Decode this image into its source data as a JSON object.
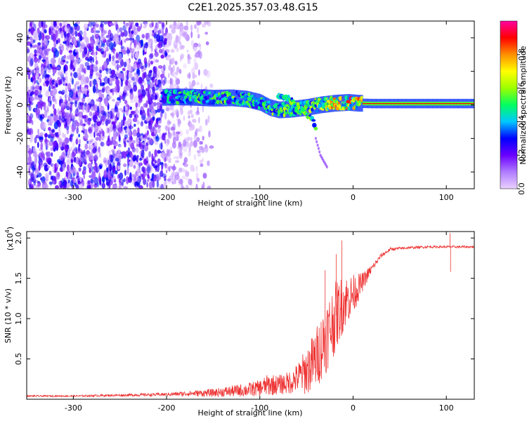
{
  "title": "C2E1.2025.357.03.48.G15",
  "chart_data": [
    {
      "type": "heatmap",
      "name": "spectrogram",
      "xlabel": "Height of straight line (km)",
      "ylabel": "Frequency (Hz)",
      "xlim": [
        -350,
        130
      ],
      "ylim": [
        -50,
        50
      ],
      "xticks": [
        -300,
        -200,
        -100,
        0,
        100
      ],
      "yticks": [
        -40,
        -20,
        0,
        20,
        40
      ],
      "colorbar": {
        "label": "Normalized spectral amplitude",
        "range": [
          0,
          1
        ],
        "ticks": [
          "0.0",
          "0.2",
          "0.4",
          "0.6",
          "0.8"
        ],
        "tick_values": [
          0.0,
          0.2,
          0.4,
          0.6,
          0.8
        ],
        "colors": [
          "#ead2ff",
          "#b07cff",
          "#6a00ff",
          "#0000ff",
          "#00c8ff",
          "#00ff60",
          "#9cff00",
          "#ffff00",
          "#ff9000",
          "#ff0000",
          "#ff00a0"
        ]
      },
      "signal_ridge": [
        {
          "x": -205,
          "f": 4.5,
          "amp": 0.45
        },
        {
          "x": -190,
          "f": 4.8,
          "amp": 0.5
        },
        {
          "x": -170,
          "f": 4.5,
          "amp": 0.55
        },
        {
          "x": -150,
          "f": 4.0,
          "amp": 0.55
        },
        {
          "x": -130,
          "f": 4.2,
          "amp": 0.6
        },
        {
          "x": -115,
          "f": 3.5,
          "amp": 0.55
        },
        {
          "x": -100,
          "f": 1.5,
          "amp": 0.5
        },
        {
          "x": -90,
          "f": -1.5,
          "amp": 0.55
        },
        {
          "x": -80,
          "f": -3.0,
          "amp": 0.6
        },
        {
          "x": -65,
          "f": -2.5,
          "amp": 0.6
        },
        {
          "x": -50,
          "f": -1.5,
          "amp": 0.6
        },
        {
          "x": -35,
          "f": 0.0,
          "amp": 0.7
        },
        {
          "x": -20,
          "f": 1.0,
          "amp": 0.8
        },
        {
          "x": -5,
          "f": 1.5,
          "amp": 0.85
        },
        {
          "x": 5,
          "f": 1.0,
          "amp": 0.85
        },
        {
          "x": 20,
          "f": 0.8,
          "amp": 0.9
        },
        {
          "x": 60,
          "f": 0.8,
          "amp": 0.95
        },
        {
          "x": 100,
          "f": 0.8,
          "amp": 0.95
        },
        {
          "x": 130,
          "f": 0.8,
          "amp": 0.95
        }
      ],
      "secondary_branch": [
        {
          "x": -80,
          "f": 6.0
        },
        {
          "x": -65,
          "f": 2.0
        },
        {
          "x": -50,
          "f": -6.0
        },
        {
          "x": -42,
          "f": -10.0
        },
        {
          "x": -40,
          "f": -15.0
        }
      ],
      "faint_tail": [
        {
          "x": -40,
          "f": -20.0
        },
        {
          "x": -35,
          "f": -30.0
        },
        {
          "x": -28,
          "f": -37.0
        }
      ],
      "noise_region": {
        "x_from": -350,
        "x_to": -200,
        "fade_to": -150
      }
    },
    {
      "type": "line",
      "name": "snr",
      "xlabel": "Height of straight line (km)",
      "ylabel": "SNR (10 * v/v)",
      "yscale_label": "(x10",
      "yscale_exp": "4",
      "yscale_close": ")",
      "xlim": [
        -350,
        130
      ],
      "ylim": [
        0,
        2.08
      ],
      "xticks": [
        -300,
        -200,
        -100,
        0,
        100
      ],
      "yticks": [
        0.5,
        1.0,
        1.5,
        2.0
      ],
      "ytick_labels": [
        "0.5",
        "1.0",
        "1.5",
        "2.0"
      ],
      "color": "#ee3333",
      "series": [
        {
          "name": "SNR",
          "envelope_x": [
            -350,
            -300,
            -250,
            -200,
            -180,
            -150,
            -130,
            -110,
            -100,
            -90,
            -80,
            -70,
            -60,
            -50,
            -40,
            -30,
            -20,
            -10,
            0,
            10,
            20,
            30,
            40,
            60,
            80,
            100,
            130
          ],
          "envelope_mean": [
            0.04,
            0.04,
            0.05,
            0.06,
            0.07,
            0.08,
            0.1,
            0.12,
            0.14,
            0.18,
            0.18,
            0.2,
            0.26,
            0.35,
            0.5,
            0.75,
            1.0,
            1.2,
            1.3,
            1.45,
            1.62,
            1.78,
            1.86,
            1.88,
            1.89,
            1.89,
            1.89
          ],
          "envelope_amp": [
            0.01,
            0.01,
            0.015,
            0.02,
            0.03,
            0.05,
            0.07,
            0.09,
            0.1,
            0.14,
            0.12,
            0.14,
            0.18,
            0.3,
            0.38,
            0.45,
            0.45,
            0.35,
            0.25,
            0.12,
            0.05,
            0.03,
            0.02,
            0.015,
            0.015,
            0.015,
            0.015
          ],
          "spikes": [
            {
              "x": -12,
              "y": 1.97
            },
            {
              "x": -30,
              "y": 1.6
            },
            {
              "x": -18,
              "y": 1.8
            },
            {
              "x": 104,
              "y": 2.06
            },
            {
              "x": 104.5,
              "y": 1.58
            }
          ]
        }
      ]
    }
  ]
}
